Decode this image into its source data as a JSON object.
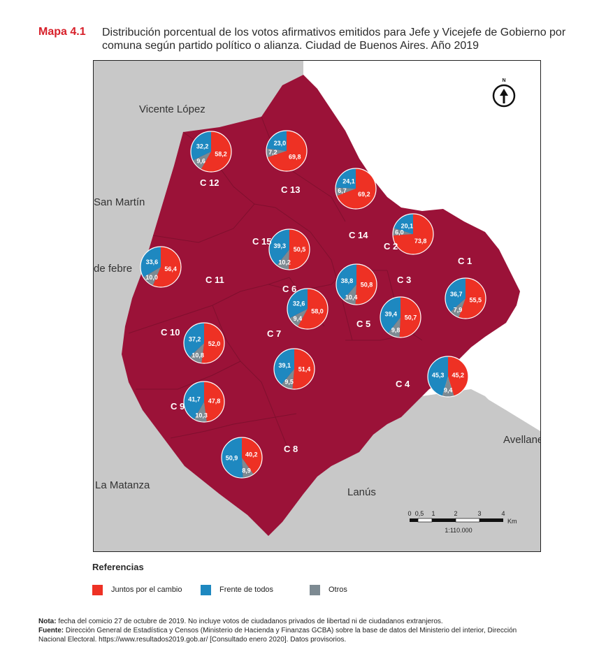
{
  "title": {
    "number": "Mapa 4.1",
    "text": "Distribución porcentual de los votos afirmativos emitidos para Jefe y Vicejefe de Gobierno por comuna según partido político o alianza. Ciudad de Buenos Aires. Año 2019"
  },
  "colors": {
    "city": "#9b1238",
    "outside": "#c8c8c8",
    "water": "#ffffff",
    "juntos": "#ee3124",
    "frente": "#1e88c0",
    "otros": "#7d8a92"
  },
  "places": {
    "vicente_lopez": "Vicente López",
    "san_martin": "San Martín",
    "tres_de_febrero": "de febre",
    "la_matanza": "La Matanza",
    "lanus": "Lanús",
    "avellaneda": "Avellane"
  },
  "compass_label": "N",
  "scale": {
    "ticks": [
      "0",
      "0,5",
      "1",
      "2",
      "3",
      "4"
    ],
    "unit": "Km",
    "ratio": "1:110.000"
  },
  "comunas": [
    {
      "label": "C 1",
      "juntos": "55,5",
      "frente": "36,7",
      "otros": "7,9"
    },
    {
      "label": "C 2",
      "juntos": "73,8",
      "frente": "20,1",
      "otros": "6,0"
    },
    {
      "label": "C 3",
      "juntos": "50,7",
      "frente": "39,4",
      "otros": "9,8"
    },
    {
      "label": "C 4",
      "juntos": "45,2",
      "frente": "45,3",
      "otros": "9,4"
    },
    {
      "label": "C 5",
      "juntos": "50,8",
      "frente": "38,8",
      "otros": "10,4"
    },
    {
      "label": "C 6",
      "juntos": "58,0",
      "frente": "32,6",
      "otros": "9,4"
    },
    {
      "label": "C 7",
      "juntos": "51,4",
      "frente": "39,1",
      "otros": "9,5"
    },
    {
      "label": "C 8",
      "juntos": "40,2",
      "frente": "50,9",
      "otros": "8,9"
    },
    {
      "label": "C 9",
      "juntos": "47,8",
      "frente": "41,7",
      "otros": "10,3"
    },
    {
      "label": "C 10",
      "juntos": "52,0",
      "frente": "37,2",
      "otros": "10,8"
    },
    {
      "label": "C 11",
      "juntos": "56,4",
      "frente": "33,6",
      "otros": "10,0"
    },
    {
      "label": "C 12",
      "juntos": "58,2",
      "frente": "32,2",
      "otros": "9,6"
    },
    {
      "label": "C 13",
      "juntos": "69,8",
      "frente": "23,0",
      "otros": "7,2"
    },
    {
      "label": "C 14",
      "juntos": "69,2",
      "frente": "24,1",
      "otros": "6,7"
    },
    {
      "label": "C 15",
      "juntos": "50,5",
      "frente": "39,3",
      "otros": "10,2"
    }
  ],
  "legend": {
    "title": "Referencias",
    "items": [
      {
        "label": "Juntos por el cambio",
        "color": "#ee3124"
      },
      {
        "label": "Frente de todos",
        "color": "#1e88c0"
      },
      {
        "label": "Otros",
        "color": "#7d8a92"
      }
    ]
  },
  "notes": {
    "note_label": "Nota:",
    "note_text": " fecha del comicio 27 de octubre de 2019. No incluye votos de ciudadanos privados de libertad ni de ciudadanos extranjeros.",
    "source_label": "Fuente:",
    "source_text": " Dirección General de Estadística y Censos (Ministerio de Hacienda y Finanzas GCBA) sobre la base de datos del Ministerio del interior, Dirección Nacional Electoral. https://www.resultados2019.gob.ar/ [Consultado enero 2020]. Datos provisorios."
  }
}
